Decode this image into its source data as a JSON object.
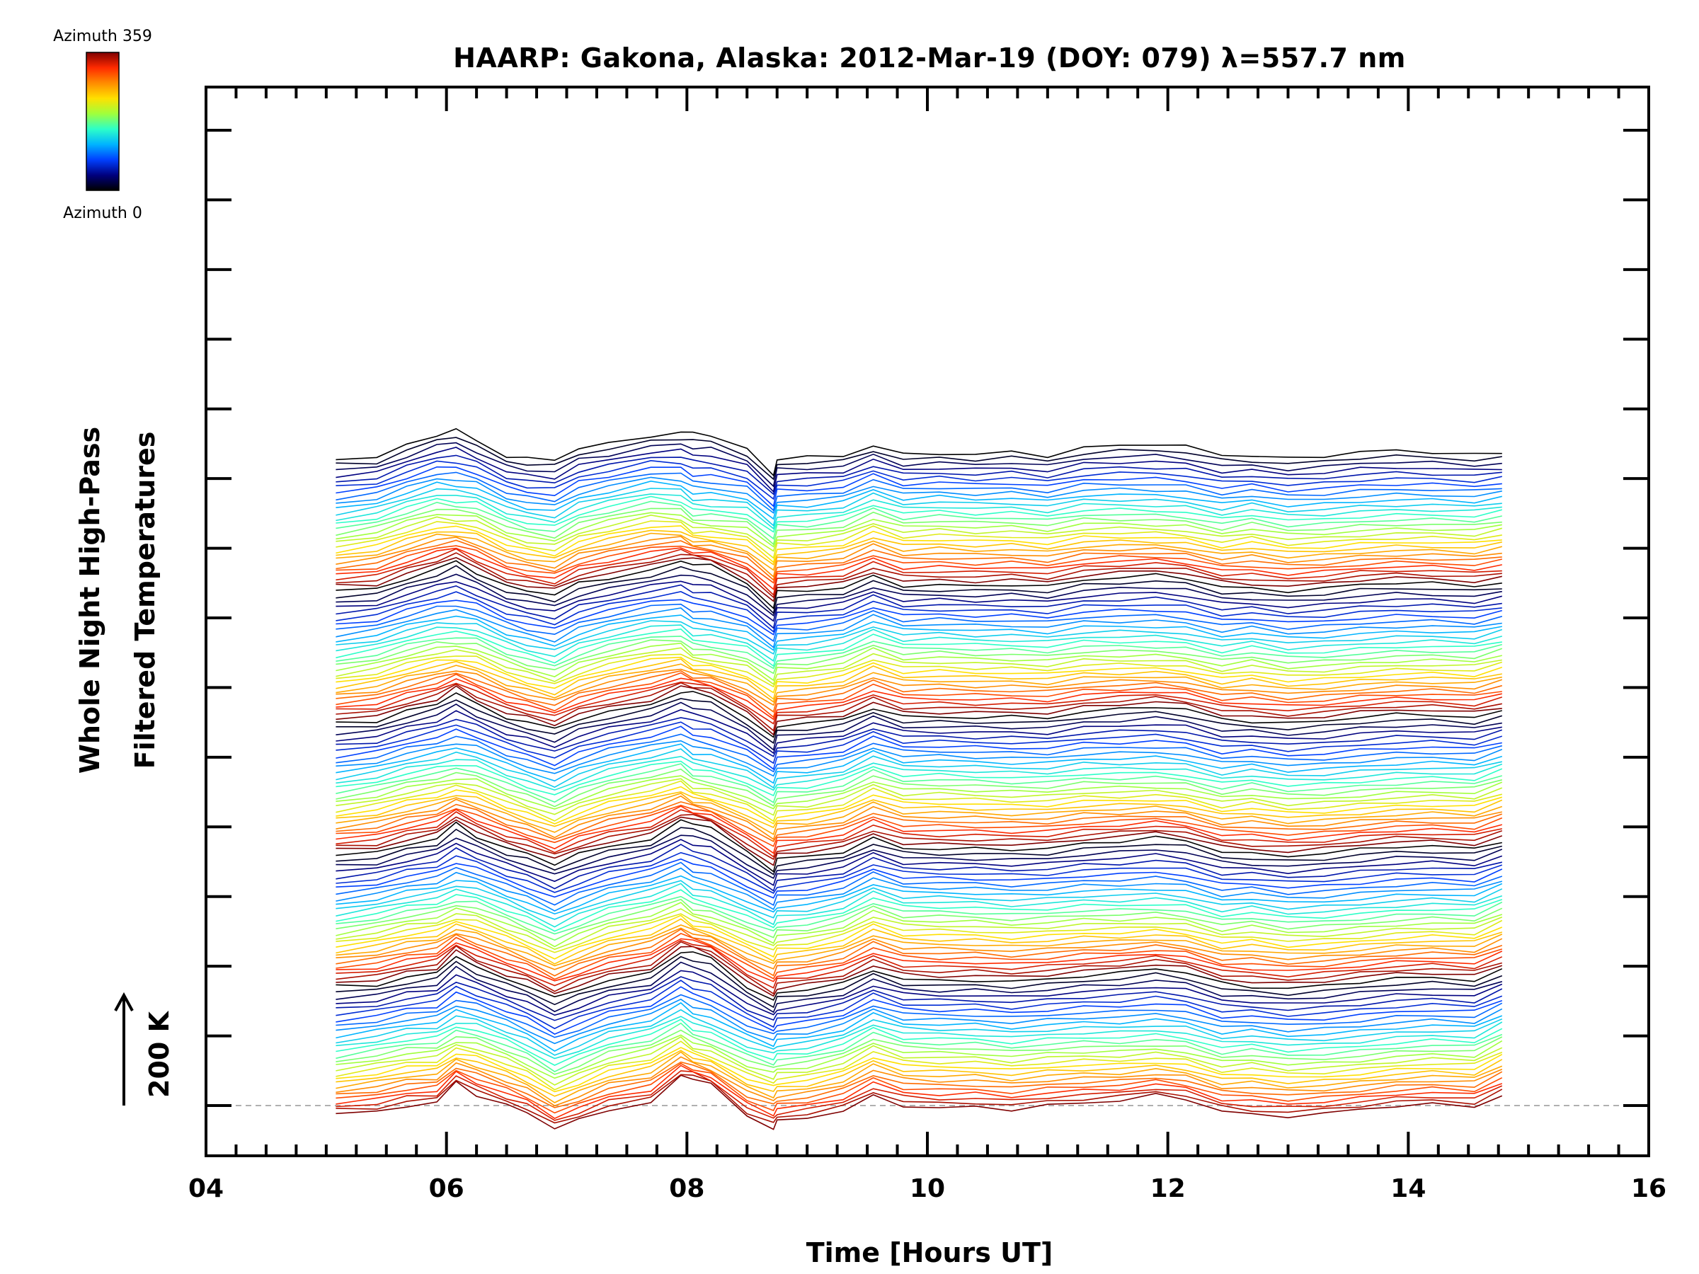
{
  "chart_data": {
    "type": "line",
    "title": "HAARP: Gakona,  Alaska: 2012-Mar-19 (DOY: 079) λ=557.7 nm",
    "xlabel": "Time [Hours UT]",
    "ylabel_lines": [
      "Whole Night High-Pass",
      "Filtered Temperatures"
    ],
    "xlim": [
      4,
      16
    ],
    "x_ticks": [
      "04",
      "06",
      "08",
      "10",
      "12",
      "14",
      "16"
    ],
    "y_ticks_count": 15,
    "scale_bar": {
      "label": "200 K",
      "kelvin": 200
    },
    "baseline": {
      "style": "dashed",
      "color": "#b0b0b0"
    },
    "colorbar": {
      "top_label": "Azimuth 359",
      "bottom_label": "Azimuth 0",
      "colormap": "rainbow",
      "stops": [
        "#7f0000",
        "#ff2a00",
        "#ff8c00",
        "#ffe000",
        "#a0ff3c",
        "#2cffc8",
        "#00b4ff",
        "#0040ff",
        "#00007f",
        "#000000"
      ]
    },
    "stack": {
      "groups": 5,
      "traces_per_group": 28,
      "offset_k_per_trace": 17.5
    },
    "x": [
      5.08,
      5.42,
      5.67,
      5.92,
      6.08,
      6.25,
      6.5,
      6.67,
      6.9,
      7.1,
      7.35,
      7.7,
      7.95,
      8.05,
      8.2,
      8.5,
      8.72,
      8.75,
      9.0,
      9.3,
      9.55,
      9.8,
      10.1,
      10.4,
      10.7,
      11.0,
      11.3,
      11.6,
      11.9,
      12.15,
      12.45,
      12.7,
      13.0,
      13.3,
      13.6,
      13.9,
      14.2,
      14.55,
      14.78
    ],
    "series_bottom_k": [
      -30,
      -25,
      0,
      10,
      90,
      40,
      0,
      -25,
      -85,
      -55,
      -15,
      10,
      110,
      105,
      80,
      -40,
      -85,
      -60,
      -45,
      -20,
      35,
      0,
      -10,
      -5,
      -15,
      0,
      10,
      20,
      40,
      25,
      -20,
      -35,
      -40,
      -30,
      -15,
      0,
      5,
      -5,
      40
    ],
    "series_top_k": [
      5,
      10,
      55,
      95,
      115,
      70,
      15,
      5,
      0,
      45,
      60,
      90,
      105,
      100,
      95,
      40,
      -60,
      5,
      10,
      15,
      55,
      20,
      25,
      20,
      30,
      15,
      45,
      55,
      60,
      50,
      20,
      15,
      5,
      15,
      30,
      35,
      30,
      20,
      25
    ],
    "group_bulge_k": [
      -35,
      -15,
      -20,
      -25,
      -60,
      -20,
      -20,
      -30,
      -35,
      -30,
      -20,
      -15,
      -50,
      -80,
      -75,
      -25,
      -5,
      -20,
      -25,
      -15,
      -10,
      -10,
      -5,
      -10,
      -15,
      -15,
      -20,
      -30,
      -40,
      -35,
      -30,
      -5,
      -20,
      -25,
      -30,
      -30,
      -25,
      -20,
      -10
    ]
  }
}
